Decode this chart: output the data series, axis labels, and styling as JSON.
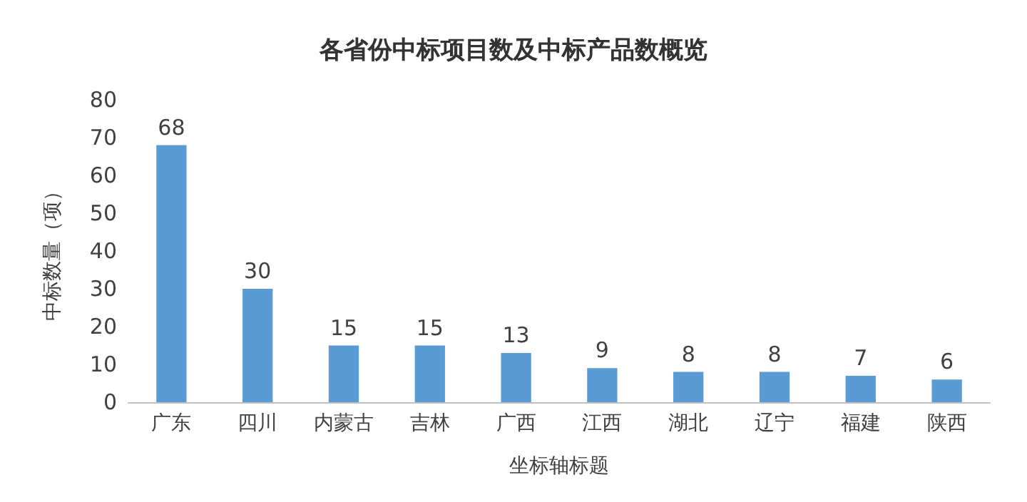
{
  "chart_data": {
    "type": "bar",
    "title": "各省份中标项目数及中标产品数概览",
    "xlabel": "坐标轴标题",
    "ylabel": "中标数量（项）",
    "categories": [
      "广东",
      "四川",
      "内蒙古",
      "吉林",
      "广西",
      "江西",
      "湖北",
      "辽宁",
      "福建",
      "陕西"
    ],
    "values": [
      68,
      30,
      15,
      15,
      13,
      9,
      8,
      8,
      7,
      6
    ],
    "color": "#5b9bd5",
    "ylim": [
      0,
      80
    ],
    "yticks": [
      0,
      10,
      20,
      30,
      40,
      50,
      60,
      70,
      80
    ],
    "grid": false,
    "data_labels": true
  }
}
